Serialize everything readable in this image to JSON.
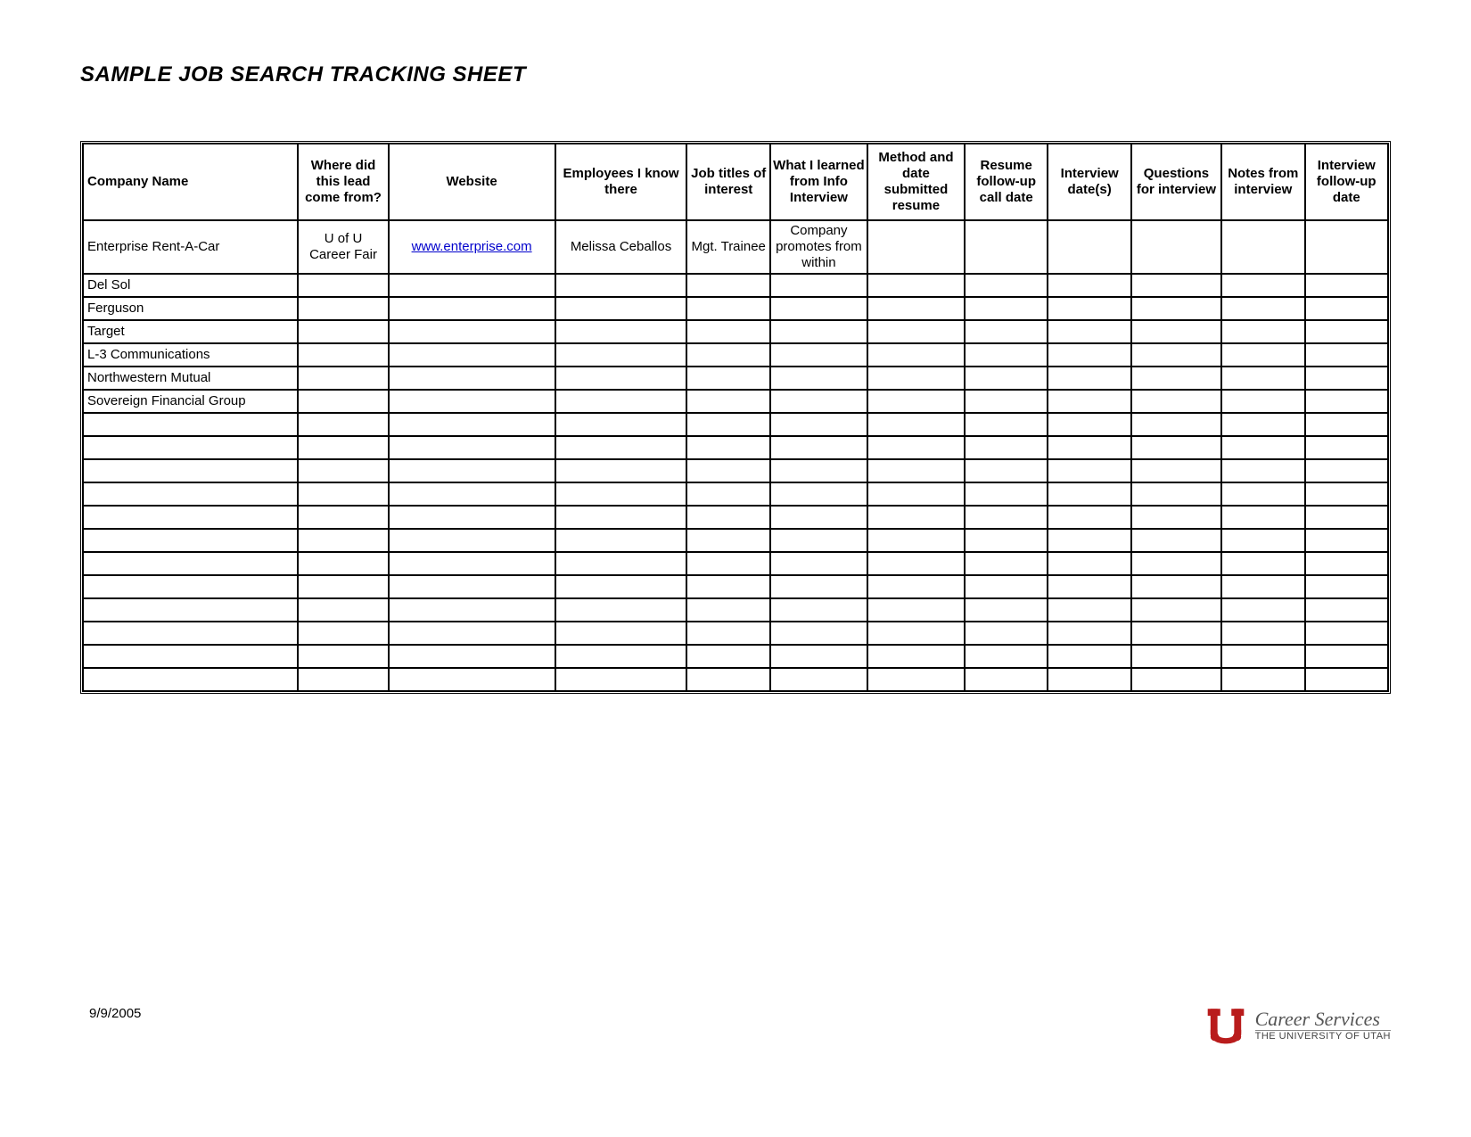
{
  "document": {
    "title": "SAMPLE JOB SEARCH TRACKING SHEET",
    "date": "9/9/2005"
  },
  "brand": {
    "line1": "Career Services",
    "line2": "THE UNIVERSITY OF UTAH",
    "logo_color": "#b91c1c"
  },
  "table": {
    "type": "table",
    "background_color": "#ffffff",
    "border_color": "#000000",
    "header_font_weight": "bold",
    "body_font_size_pt": 11,
    "columns": [
      {
        "key": "company",
        "label": "Company Name",
        "width_pct": 15.5,
        "align": "left"
      },
      {
        "key": "lead",
        "label": "Where did this lead come from?",
        "width_pct": 6.5,
        "align": "center"
      },
      {
        "key": "website",
        "label": "Website",
        "width_pct": 12.0,
        "align": "center"
      },
      {
        "key": "employees",
        "label": "Employees I know there",
        "width_pct": 9.5,
        "align": "center"
      },
      {
        "key": "titles",
        "label": "Job titles of interest",
        "width_pct": 6.0,
        "align": "center"
      },
      {
        "key": "learned",
        "label": "What I learned from Info Interview",
        "width_pct": 7.0,
        "align": "center"
      },
      {
        "key": "method",
        "label": "Method and date submitted resume",
        "width_pct": 7.0,
        "align": "center"
      },
      {
        "key": "resumefu",
        "label": "Resume follow-up call date",
        "width_pct": 6.0,
        "align": "center"
      },
      {
        "key": "ivdates",
        "label": "Interview date(s)",
        "width_pct": 6.0,
        "align": "center"
      },
      {
        "key": "questions",
        "label": "Questions for interview",
        "width_pct": 6.5,
        "align": "center"
      },
      {
        "key": "notes",
        "label": "Notes from interview",
        "width_pct": 6.0,
        "align": "center"
      },
      {
        "key": "ivfu",
        "label": "Interview follow-up date",
        "width_pct": 6.0,
        "align": "center"
      }
    ],
    "rows": [
      {
        "company": "Enterprise Rent-A-Car",
        "lead": "U of U Career Fair",
        "website": "www.enterprise.com",
        "website_is_link": true,
        "employees": "Melissa Ceballos",
        "titles": "Mgt. Trainee",
        "learned": "Company promotes from within",
        "method": "",
        "resumefu": "",
        "ivdates": "",
        "questions": "",
        "notes": "",
        "ivfu": "",
        "tall": true
      },
      {
        "company": "Del Sol"
      },
      {
        "company": "Ferguson"
      },
      {
        "company": "Target"
      },
      {
        "company": "L-3 Communications"
      },
      {
        "company": "Northwestern Mutual"
      },
      {
        "company": "Sovereign Financial Group"
      },
      {
        "company": ""
      },
      {
        "company": ""
      },
      {
        "company": ""
      },
      {
        "company": ""
      },
      {
        "company": ""
      },
      {
        "company": ""
      },
      {
        "company": ""
      },
      {
        "company": ""
      },
      {
        "company": ""
      },
      {
        "company": ""
      },
      {
        "company": ""
      },
      {
        "company": ""
      }
    ]
  }
}
